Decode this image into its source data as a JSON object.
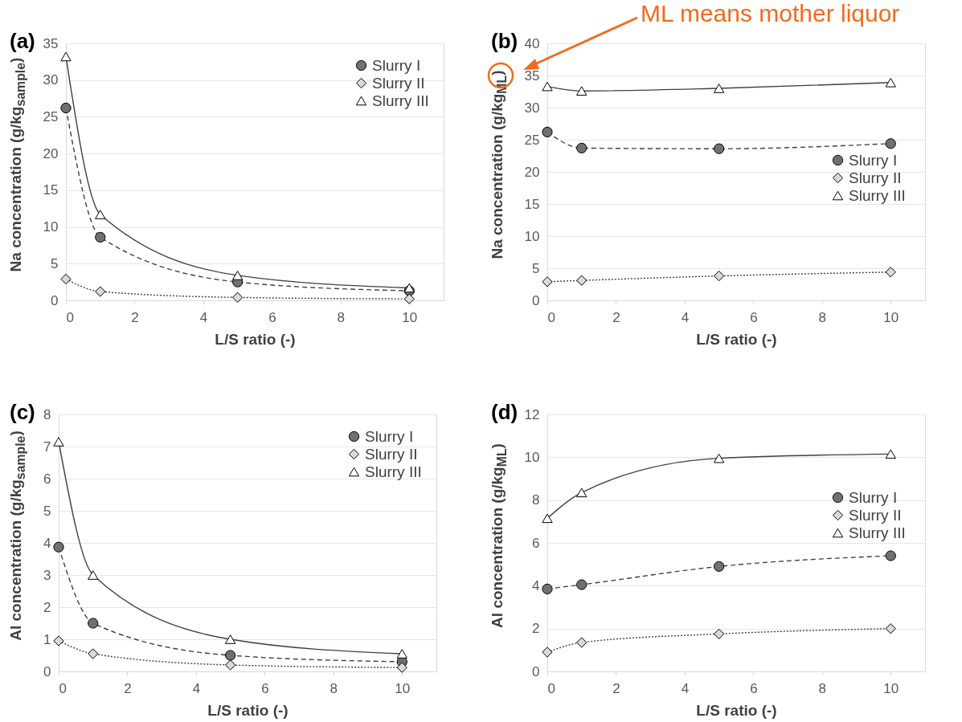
{
  "chart_data": [
    {
      "type": "line",
      "title": "(a)",
      "xlabel": "L/S ratio (-)",
      "ylabel": "Na concentration (g/kg$_{sample}$)",
      "x": [
        0,
        1,
        5,
        10
      ],
      "xlim": [
        0,
        11
      ],
      "xticks": [
        0,
        2,
        4,
        6,
        8,
        10
      ],
      "ylim": [
        0,
        35
      ],
      "yticks": [
        0,
        5,
        10,
        15,
        20,
        25,
        30,
        35
      ],
      "grid": "y",
      "legend": "top right",
      "series": [
        {
          "name": "Slurry I",
          "color": "#707070",
          "marker": "circle",
          "line_style": "dashed",
          "values": [
            26.2,
            8.6,
            2.5,
            1.3
          ]
        },
        {
          "name": "Slurry II",
          "color": "#d9d9d9",
          "marker": "diamond",
          "line_style": "dotted",
          "values": [
            2.9,
            1.2,
            0.4,
            0.2
          ]
        },
        {
          "name": "Slurry III",
          "color": "#ffffff",
          "marker": "triangle",
          "line_style": "solid",
          "values": [
            33.2,
            11.7,
            3.4,
            1.7
          ]
        }
      ]
    },
    {
      "type": "line",
      "title": "(b)",
      "xlabel": "L/S ratio (-)",
      "ylabel": "Na concentration (g/kg$_{ML}$)",
      "annotations": [
        "ML means mother liquor"
      ],
      "x": [
        0,
        1,
        5,
        10
      ],
      "xlim": [
        0,
        11
      ],
      "xticks": [
        0,
        2,
        4,
        6,
        8,
        10
      ],
      "ylim": [
        0,
        40
      ],
      "yticks": [
        0,
        5,
        10,
        15,
        20,
        25,
        30,
        35,
        40
      ],
      "grid": "y",
      "legend": "right",
      "series": [
        {
          "name": "Slurry I",
          "color": "#707070",
          "marker": "circle",
          "line_style": "dashed",
          "values": [
            26.2,
            23.7,
            23.6,
            24.4
          ]
        },
        {
          "name": "Slurry II",
          "color": "#d9d9d9",
          "marker": "diamond",
          "line_style": "dotted",
          "values": [
            2.9,
            3.1,
            3.8,
            4.4
          ]
        },
        {
          "name": "Slurry III",
          "color": "#ffffff",
          "marker": "triangle",
          "line_style": "solid",
          "values": [
            33.3,
            32.6,
            33.0,
            33.9
          ]
        }
      ]
    },
    {
      "type": "line",
      "title": "(c)",
      "xlabel": "L/S ratio (-)",
      "ylabel": "Al concentration (g/kg$_{sample}$)",
      "x": [
        0,
        1,
        5,
        10
      ],
      "xlim": [
        0,
        11
      ],
      "xticks": [
        0,
        2,
        4,
        6,
        8,
        10
      ],
      "ylim": [
        0,
        8
      ],
      "yticks": [
        0,
        1,
        2,
        3,
        4,
        5,
        6,
        7,
        8
      ],
      "grid": "y",
      "legend": "top right",
      "series": [
        {
          "name": "Slurry I",
          "color": "#707070",
          "marker": "circle",
          "line_style": "dashed",
          "values": [
            3.87,
            1.5,
            0.5,
            0.3
          ]
        },
        {
          "name": "Slurry II",
          "color": "#d9d9d9",
          "marker": "diamond",
          "line_style": "dotted",
          "values": [
            0.95,
            0.55,
            0.2,
            0.12
          ]
        },
        {
          "name": "Slurry III",
          "color": "#ffffff",
          "marker": "triangle",
          "line_style": "solid",
          "values": [
            7.15,
            3.0,
            1.0,
            0.55
          ]
        }
      ]
    },
    {
      "type": "line",
      "title": "(d)",
      "xlabel": "L/S ratio (-)",
      "ylabel": "Al concentration (g/kg$_{ML}$)",
      "x": [
        0,
        1,
        5,
        10
      ],
      "xlim": [
        0,
        11
      ],
      "xticks": [
        0,
        2,
        4,
        6,
        8,
        10
      ],
      "ylim": [
        0,
        12
      ],
      "yticks": [
        0,
        2,
        4,
        6,
        8,
        10,
        12
      ],
      "grid": "y",
      "legend": "right",
      "series": [
        {
          "name": "Slurry I",
          "color": "#707070",
          "marker": "circle",
          "line_style": "dashed",
          "values": [
            3.85,
            4.05,
            4.9,
            5.4
          ]
        },
        {
          "name": "Slurry II",
          "color": "#d9d9d9",
          "marker": "diamond",
          "line_style": "dotted",
          "values": [
            0.9,
            1.35,
            1.75,
            2.0
          ]
        },
        {
          "name": "Slurry III",
          "color": "#ffffff",
          "marker": "triangle",
          "line_style": "solid",
          "values": [
            7.15,
            8.35,
            9.95,
            10.15
          ]
        }
      ]
    }
  ]
}
